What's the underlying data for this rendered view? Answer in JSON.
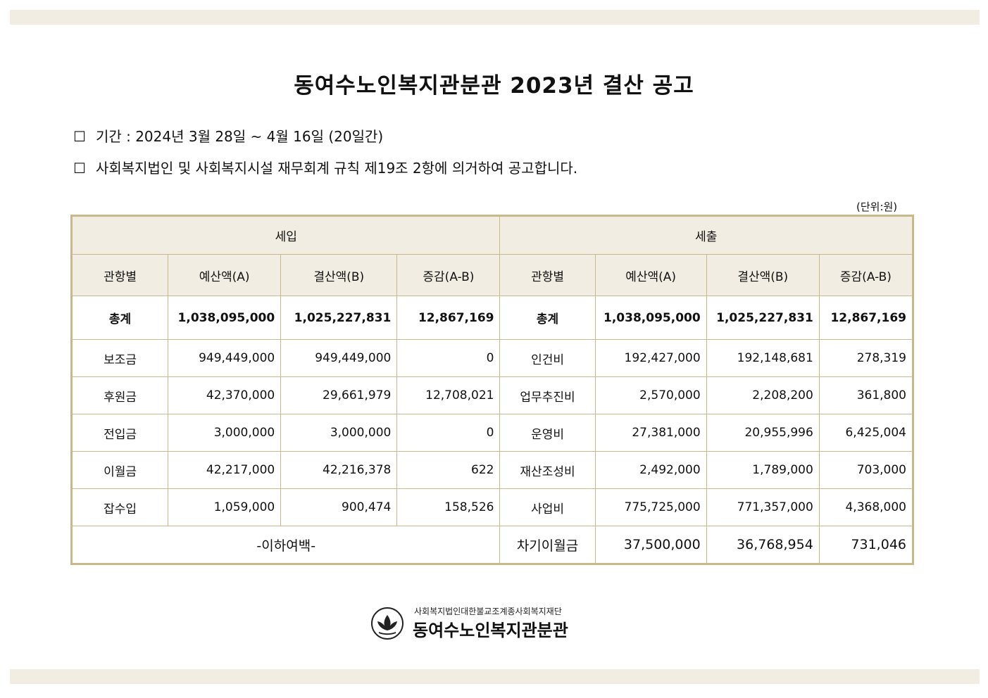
{
  "title": "동여수노인복지관분관 2023년 결산 공고",
  "period": {
    "bullet": "☐",
    "text": "기간 : 2024년 3월 28일 ~ 4월 16일 (20일간)"
  },
  "basis": {
    "bullet": "☐",
    "text": "사회복지법인 및 사회복지시설 재무회계 규칙 제19조 2항에 의거하여 공고합니다."
  },
  "unit": "(단위:원)",
  "table": {
    "income_label": "세입",
    "expense_label": "세출",
    "headers": [
      "관항별",
      "예산액(A)",
      "결산액(B)",
      "증감(A-B)",
      "관항별",
      "예산액(A)",
      "결산액(B)",
      "증감(A-B)"
    ],
    "total": [
      "총계",
      "1,038,095,000",
      "1,025,227,831",
      "12,867,169",
      "총계",
      "1,038,095,000",
      "1,025,227,831",
      "12,867,169"
    ],
    "rows": [
      [
        "보조금",
        "949,449,000",
        "949,449,000",
        "0",
        "인건비",
        "192,427,000",
        "192,148,681",
        "278,319"
      ],
      [
        "후원금",
        "42,370,000",
        "29,661,979",
        "12,708,021",
        "업무추진비",
        "2,570,000",
        "2,208,200",
        "361,800"
      ],
      [
        "전입금",
        "3,000,000",
        "3,000,000",
        "0",
        "운영비",
        "27,381,000",
        "20,955,996",
        "6,425,004"
      ],
      [
        "이월금",
        "42,217,000",
        "42,216,378",
        "622",
        "재산조성비",
        "2,492,000",
        "1,789,000",
        "703,000"
      ],
      [
        "잡수입",
        "1,059,000",
        "900,474",
        "158,526",
        "사업비",
        "775,725,000",
        "771,357,000",
        "4,368,000"
      ]
    ],
    "last_row": {
      "blank_note": "-이하여백-",
      "label": "차기이월금",
      "budget": "37,500,000",
      "settled": "36,768,954",
      "diff": "731,046"
    }
  },
  "footer": {
    "org_sub": "사회복지법인대한불교조계종사회복지재단",
    "org_name": "동여수노인복지관분관",
    "logo_icon": "lotus-logo-icon"
  },
  "colors": {
    "band": "#f2ede2",
    "header_fill": "#f2ede2",
    "border": "#c9b88a"
  }
}
